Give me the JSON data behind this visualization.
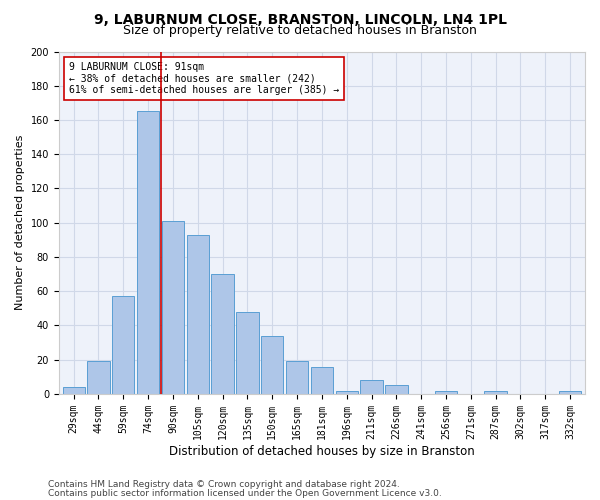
{
  "title_line1": "9, LABURNUM CLOSE, BRANSTON, LINCOLN, LN4 1PL",
  "title_line2": "Size of property relative to detached houses in Branston",
  "xlabel": "Distribution of detached houses by size in Branston",
  "ylabel": "Number of detached properties",
  "categories": [
    "29sqm",
    "44sqm",
    "59sqm",
    "74sqm",
    "90sqm",
    "105sqm",
    "120sqm",
    "135sqm",
    "150sqm",
    "165sqm",
    "181sqm",
    "196sqm",
    "211sqm",
    "226sqm",
    "241sqm",
    "256sqm",
    "271sqm",
    "287sqm",
    "302sqm",
    "317sqm",
    "332sqm"
  ],
  "values": [
    4,
    19,
    57,
    165,
    101,
    93,
    70,
    48,
    34,
    19,
    16,
    2,
    8,
    5,
    0,
    2,
    0,
    2,
    0,
    0,
    2
  ],
  "bar_color": "#aec6e8",
  "bar_edge_color": "#5a9fd4",
  "vline_index": 3.5,
  "vline_color": "#cc0000",
  "annotation_line1": "9 LABURNUM CLOSE: 91sqm",
  "annotation_line2": "← 38% of detached houses are smaller (242)",
  "annotation_line3": "61% of semi-detached houses are larger (385) →",
  "annotation_box_color": "#ffffff",
  "annotation_box_edge": "#cc0000",
  "grid_color": "#d0d8e8",
  "background_color": "#eef2fa",
  "ylim": [
    0,
    200
  ],
  "yticks": [
    0,
    20,
    40,
    60,
    80,
    100,
    120,
    140,
    160,
    180,
    200
  ],
  "footer_line1": "Contains HM Land Registry data © Crown copyright and database right 2024.",
  "footer_line2": "Contains public sector information licensed under the Open Government Licence v3.0.",
  "title_fontsize": 10,
  "subtitle_fontsize": 9,
  "tick_fontsize": 7,
  "ylabel_fontsize": 8,
  "xlabel_fontsize": 8.5,
  "footer_fontsize": 6.5,
  "annotation_fontsize": 7
}
